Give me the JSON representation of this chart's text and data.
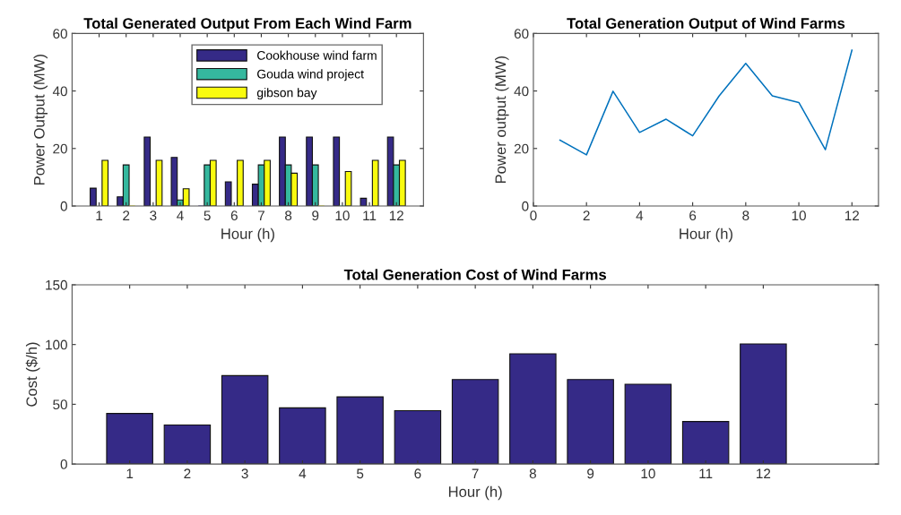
{
  "chart_data": [
    {
      "type": "bar",
      "title": "Total Generated Output From Each Wind Farm",
      "xlabel": "Hour (h)",
      "ylabel": "Power Output (MW)",
      "x": [
        1,
        2,
        3,
        4,
        5,
        6,
        7,
        8,
        9,
        10,
        11,
        12
      ],
      "xlim": [
        0,
        13
      ],
      "xticks": [
        1,
        2,
        3,
        4,
        5,
        6,
        7,
        8,
        9,
        10,
        11,
        12
      ],
      "ylim": [
        0,
        60
      ],
      "yticks": [
        0,
        20,
        40,
        60
      ],
      "grid": false,
      "legend": "top right",
      "series": [
        {
          "name": "Cookhouse wind farm",
          "color": "#352a87",
          "values": [
            6.2,
            3.2,
            24,
            16.9,
            0,
            8.4,
            7.6,
            24,
            24,
            24,
            2.7,
            24
          ]
        },
        {
          "name": "Gouda wind project",
          "color": "#35b89e",
          "values": [
            null,
            14.3,
            0,
            2.1,
            14.3,
            0,
            14.3,
            14.3,
            14.3,
            0,
            null,
            14.3
          ]
        },
        {
          "name": "gibson bay",
          "color": "#f9fb0e",
          "values": [
            15.9,
            0,
            15.9,
            6,
            15.9,
            15.9,
            15.9,
            11.4,
            0,
            12,
            15.9,
            15.9
          ]
        }
      ]
    },
    {
      "type": "line",
      "title": "Total Generation Output of Wind Farms",
      "xlabel": "Hour (h)",
      "ylabel": "Power output (MW)",
      "x": [
        1,
        2,
        3,
        4,
        5,
        6,
        7,
        8,
        9,
        10,
        11,
        12
      ],
      "xlim": [
        0,
        13
      ],
      "xticks": [
        0,
        2,
        4,
        6,
        8,
        10,
        12
      ],
      "ylim": [
        0,
        60
      ],
      "yticks": [
        0,
        20,
        40,
        60
      ],
      "grid": false,
      "legend": false,
      "series": [
        {
          "color": "#0072bd",
          "values": [
            22.9,
            17.8,
            39.9,
            25.6,
            30.2,
            24.4,
            38.3,
            49.6,
            38.3,
            36,
            19.6,
            54.2
          ]
        }
      ]
    },
    {
      "type": "bar",
      "title": "Total Generation Cost of Wind Farms",
      "xlabel": "Hour (h)",
      "ylabel": "Cost ($/h)",
      "x": [
        1,
        2,
        3,
        4,
        5,
        6,
        7,
        8,
        9,
        10,
        11,
        12
      ],
      "xlim": [
        0,
        14
      ],
      "xticks": [
        1,
        2,
        3,
        4,
        5,
        6,
        7,
        8,
        9,
        10,
        11,
        12
      ],
      "ylim": [
        0,
        150
      ],
      "yticks": [
        0,
        50,
        100,
        150
      ],
      "grid": false,
      "legend": false,
      "series": [
        {
          "color": "#352a87",
          "values": [
            42.3,
            32.7,
            74,
            47,
            56.2,
            44.7,
            70.7,
            92.3,
            70.7,
            66.8,
            35.6,
            100.5
          ]
        }
      ]
    }
  ]
}
